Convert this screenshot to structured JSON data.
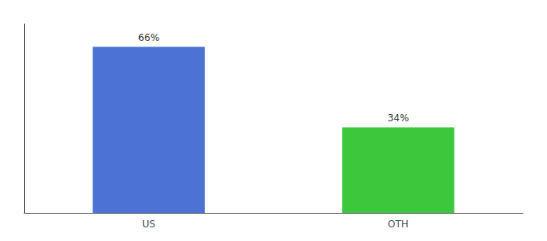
{
  "chart_data": {
    "type": "bar",
    "categories": [
      "US",
      "OTH"
    ],
    "values": [
      66,
      34
    ],
    "value_labels": [
      "66%",
      "34%"
    ],
    "colors": [
      "#4b72d4",
      "#3cc83c"
    ],
    "ylim": [
      0,
      75
    ],
    "yticks": [],
    "tick_labels": "x",
    "grid": false,
    "data_labels": true
  }
}
